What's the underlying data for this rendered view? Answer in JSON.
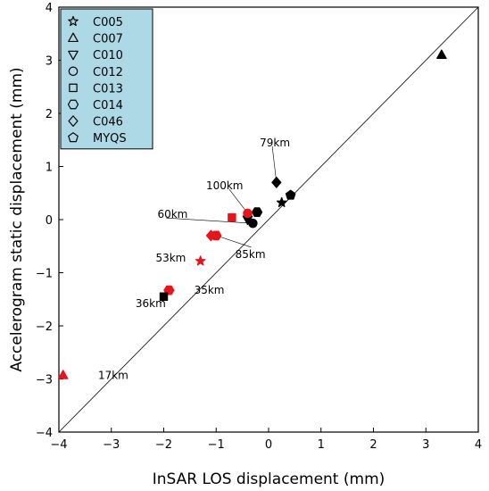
{
  "chart_data": {
    "type": "scatter",
    "title": "",
    "xlabel": "InSAR LOS displacement (mm)",
    "ylabel": "Accelerogram static displacement (mm)",
    "xlim": [
      -4,
      4
    ],
    "ylim": [
      -4,
      4
    ],
    "xticks": [
      "−4",
      "−3",
      "−2",
      "−1",
      "0",
      "1",
      "2",
      "3",
      "4"
    ],
    "yticks": [
      "−4",
      "−3",
      "−2",
      "−1",
      "0",
      "1",
      "2",
      "3",
      "4"
    ],
    "grid": false,
    "reference_line": "1:1",
    "legend_position": "top-left",
    "legend_background": "#add8e6",
    "colors": {
      "black": "#000000",
      "red": "#e8141c"
    },
    "legend": [
      {
        "name": "C005",
        "marker": "star"
      },
      {
        "name": "C007",
        "marker": "triangle-up"
      },
      {
        "name": "C010",
        "marker": "triangle-down"
      },
      {
        "name": "C012",
        "marker": "circle"
      },
      {
        "name": "C013",
        "marker": "square"
      },
      {
        "name": "C014",
        "marker": "hexagon"
      },
      {
        "name": "C046",
        "marker": "diamond"
      },
      {
        "name": "MYQS",
        "marker": "pentagon"
      }
    ],
    "points": [
      {
        "x": 3.3,
        "y": 3.1,
        "marker": "triangle-up",
        "color": "black"
      },
      {
        "x": 0.42,
        "y": 0.46,
        "marker": "pentagon",
        "color": "black"
      },
      {
        "x": 0.15,
        "y": 0.7,
        "marker": "diamond",
        "color": "black"
      },
      {
        "x": 0.25,
        "y": 0.32,
        "marker": "star",
        "color": "black"
      },
      {
        "x": -0.22,
        "y": 0.14,
        "marker": "hexagon",
        "color": "black"
      },
      {
        "x": -0.3,
        "y": -0.07,
        "marker": "circle",
        "color": "black"
      },
      {
        "x": -0.4,
        "y": 0.0,
        "marker": "triangle-down",
        "color": "black"
      },
      {
        "x": -0.4,
        "y": 0.12,
        "marker": "circle",
        "color": "red"
      },
      {
        "x": -0.7,
        "y": 0.04,
        "marker": "square",
        "color": "red"
      },
      {
        "x": -1.0,
        "y": -0.3,
        "marker": "hexagon",
        "color": "red"
      },
      {
        "x": -1.1,
        "y": -0.3,
        "marker": "diamond",
        "color": "red"
      },
      {
        "x": -1.3,
        "y": -0.78,
        "marker": "star",
        "color": "red"
      },
      {
        "x": -1.9,
        "y": -1.33,
        "marker": "hexagon",
        "color": "red"
      },
      {
        "x": -2.0,
        "y": -1.45,
        "marker": "square",
        "color": "black"
      },
      {
        "x": -3.92,
        "y": -2.93,
        "marker": "triangle-up",
        "color": "red"
      }
    ],
    "annotations": [
      {
        "text": "79km",
        "x": 0.07,
        "y": 1.38,
        "to": [
          0.15,
          0.7
        ]
      },
      {
        "text": "100km",
        "x": -0.75,
        "y": 0.57,
        "to": [
          -0.4,
          0.12
        ]
      },
      {
        "text": "60km",
        "x": -1.95,
        "y": 0.03,
        "to": [
          -0.3,
          -0.07
        ]
      },
      {
        "text": "85km",
        "x": -0.33,
        "y": -0.52,
        "to": [
          -1.0,
          -0.3
        ]
      },
      {
        "text": "53km",
        "x": -1.95,
        "y": -0.72,
        "to": null
      },
      {
        "text": "35km",
        "x": -1.42,
        "y": -1.33,
        "to": null
      },
      {
        "text": "36km",
        "x": -2.3,
        "y": -1.58,
        "to": null
      },
      {
        "text": "17km",
        "x": -3.15,
        "y": -2.93,
        "to": null
      }
    ]
  }
}
